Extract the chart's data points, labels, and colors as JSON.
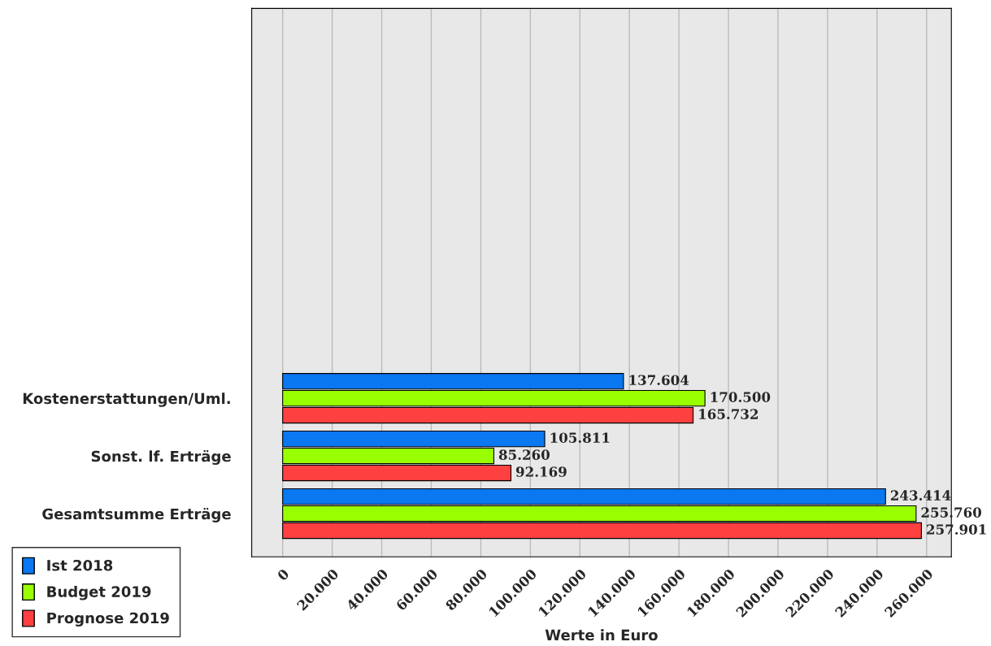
{
  "chart_data": {
    "type": "bar",
    "orientation": "horizontal",
    "xlabel": "Werte in Euro",
    "categories": [
      "Kostenerstattungen/Uml.",
      "Sonst. lf. Erträge",
      "Gesamtsumme Erträge"
    ],
    "series": [
      {
        "name": "Ist 2018",
        "color": "#0a78f0",
        "values": [
          137604,
          105811,
          243414
        ],
        "value_labels": [
          "137.604",
          "105.811",
          "243.414"
        ]
      },
      {
        "name": "Budget 2019",
        "color": "#99ff00",
        "values": [
          170500,
          85260,
          255760
        ],
        "value_labels": [
          "170.500",
          "85.260",
          "255.760"
        ]
      },
      {
        "name": "Prognose 2019",
        "color": "#ff4040",
        "values": [
          165732,
          92169,
          257901
        ],
        "value_labels": [
          "165.732",
          "92.169",
          "257.901"
        ]
      }
    ],
    "xlim": [
      -12500,
      270000
    ],
    "xticks": [
      0,
      {
        "value": 20000,
        "label": "20.000"
      },
      {
        "value": 40000,
        "label": "40.000"
      },
      {
        "value": 60000,
        "label": "60.000"
      },
      {
        "value": 80000,
        "label": "80.000"
      },
      {
        "value": 100000,
        "label": "100.000"
      },
      {
        "value": 120000,
        "label": "120.000"
      },
      {
        "value": 140000,
        "label": "140.000"
      },
      {
        "value": 160000,
        "label": "160.000"
      },
      {
        "value": 180000,
        "label": "180.000"
      },
      {
        "value": 200000,
        "label": "200.000"
      },
      {
        "value": 220000,
        "label": "220.000"
      },
      {
        "value": 240000,
        "label": "240.000"
      },
      {
        "value": 260000,
        "label": "260.000"
      }
    ],
    "grid": "x",
    "legend": "bottom left"
  }
}
